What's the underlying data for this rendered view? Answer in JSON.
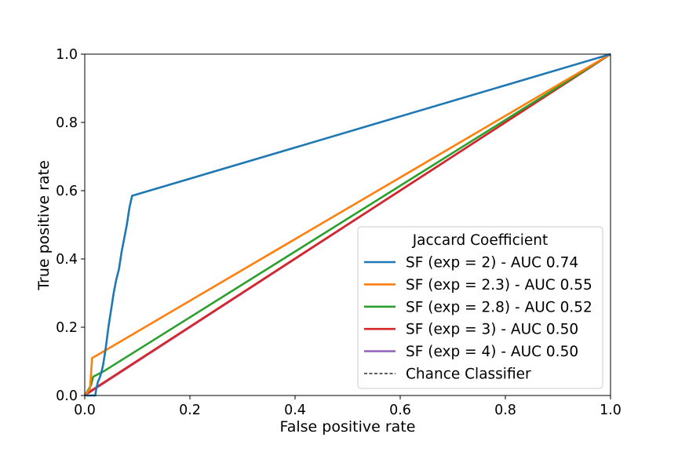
{
  "chart_data": {
    "type": "line",
    "xlabel": "False positive rate",
    "ylabel": "True positive rate",
    "xlim": [
      0.0,
      1.0
    ],
    "ylim": [
      0.0,
      1.0
    ],
    "x_ticks": [
      "0.0",
      "0.2",
      "0.4",
      "0.6",
      "0.8",
      "1.0"
    ],
    "y_ticks": [
      "0.0",
      "0.2",
      "0.4",
      "0.6",
      "0.8",
      "1.0"
    ],
    "grid": false,
    "legend": {
      "title": "Jaccard Coefficient",
      "placement": "lower-right"
    },
    "series": [
      {
        "name": "SF (exp = 2) - AUC 0.74",
        "color": "#1f77b4",
        "points": [
          [
            0.0,
            0.0
          ],
          [
            0.02,
            0.0
          ],
          [
            0.022,
            0.02
          ],
          [
            0.025,
            0.04
          ],
          [
            0.028,
            0.05
          ],
          [
            0.03,
            0.06
          ],
          [
            0.032,
            0.07
          ],
          [
            0.035,
            0.09
          ],
          [
            0.038,
            0.12
          ],
          [
            0.04,
            0.14
          ],
          [
            0.045,
            0.2
          ],
          [
            0.05,
            0.25
          ],
          [
            0.055,
            0.3
          ],
          [
            0.06,
            0.34
          ],
          [
            0.065,
            0.37
          ],
          [
            0.07,
            0.42
          ],
          [
            0.075,
            0.46
          ],
          [
            0.08,
            0.5
          ],
          [
            0.085,
            0.55
          ],
          [
            0.09,
            0.585
          ],
          [
            1.0,
            1.0
          ]
        ]
      },
      {
        "name": "SF (exp = 2.3) - AUC 0.55",
        "color": "#ff7f0e",
        "points": [
          [
            0.0,
            0.0
          ],
          [
            0.01,
            0.02
          ],
          [
            0.014,
            0.11
          ],
          [
            0.02,
            0.115
          ],
          [
            1.0,
            1.0
          ]
        ]
      },
      {
        "name": "SF (exp = 2.8) - AUC 0.52",
        "color": "#2ca02c",
        "points": [
          [
            0.0,
            0.0
          ],
          [
            0.012,
            0.03
          ],
          [
            0.016,
            0.055
          ],
          [
            0.035,
            0.07
          ],
          [
            1.0,
            1.0
          ]
        ]
      },
      {
        "name": "SF (exp = 3) - AUC 0.50",
        "color": "#d62728",
        "points": [
          [
            0.0,
            0.0
          ],
          [
            0.005,
            0.007
          ],
          [
            1.0,
            1.0
          ]
        ]
      },
      {
        "name": "SF (exp = 4) - AUC 0.50",
        "color": "#9467bd",
        "points": [
          [
            0.0,
            0.0
          ],
          [
            0.005,
            0.005
          ],
          [
            1.0,
            1.0
          ]
        ]
      },
      {
        "name": "Chance Classifier",
        "color": "#000000",
        "dashed": true,
        "points": [
          [
            0.0,
            0.0
          ],
          [
            1.0,
            1.0
          ]
        ]
      }
    ]
  }
}
